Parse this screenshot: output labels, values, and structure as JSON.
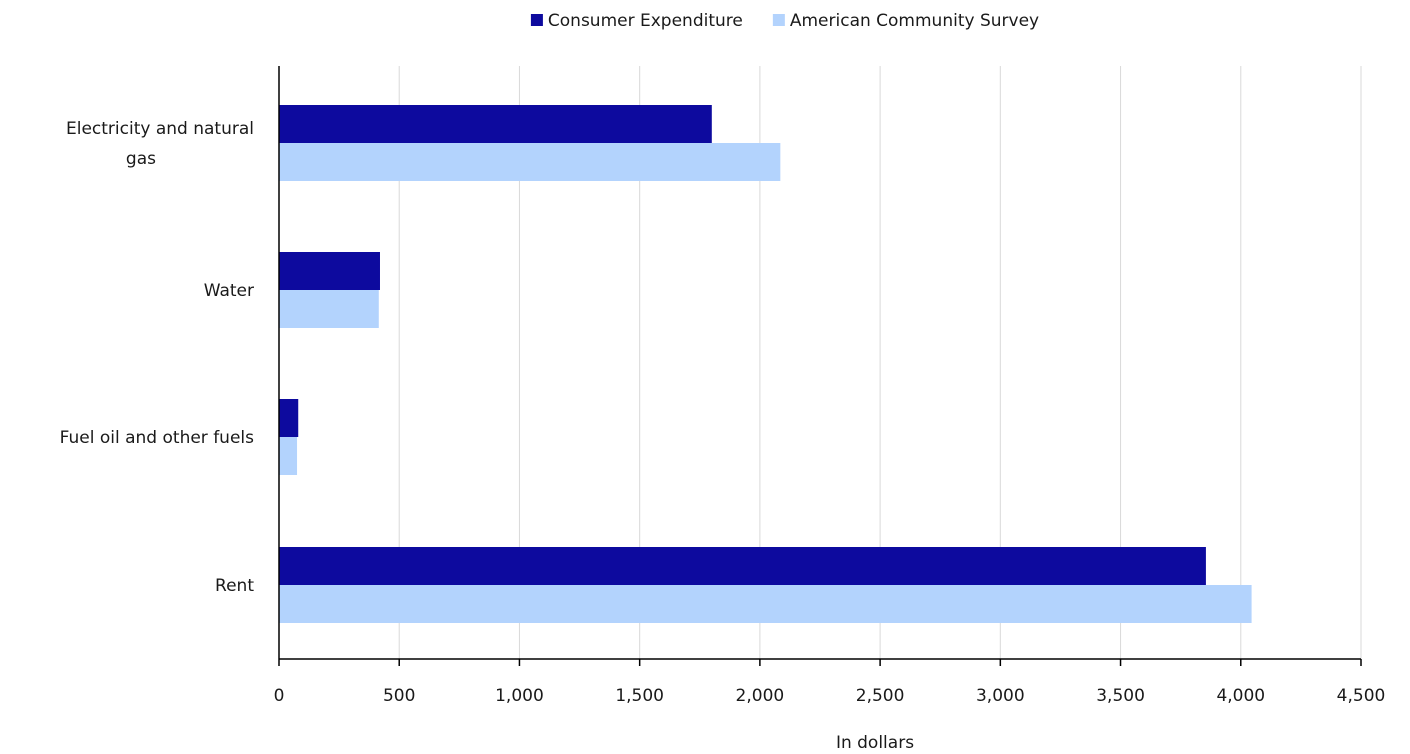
{
  "chart_data": {
    "type": "bar",
    "orientation": "horizontal",
    "title": "",
    "xlabel": "In dollars",
    "ylabel": "",
    "categories": [
      "Electricity and natural gas",
      "Water",
      "Fuel oil and other fuels",
      "Rent"
    ],
    "series": [
      {
        "name": "Consumer Expenditure",
        "color": "#0D0A9E",
        "values": [
          1800,
          420,
          80,
          3855
        ]
      },
      {
        "name": "American Community Survey",
        "color": "#B3D3FD",
        "values": [
          2085,
          415,
          75,
          4045
        ]
      }
    ],
    "xlim": [
      0,
      4500
    ],
    "x_ticks": [
      0,
      500,
      1000,
      1500,
      2000,
      2500,
      3000,
      3500,
      4000,
      4500
    ],
    "x_tick_labels": [
      "0",
      "500",
      "1,000",
      "1,500",
      "2,000",
      "2,500",
      "3,000",
      "3,500",
      "4,000",
      "4,500"
    ],
    "grid": "vertical",
    "grid_color": "#D9D9D9",
    "legend_position": "top-center"
  }
}
